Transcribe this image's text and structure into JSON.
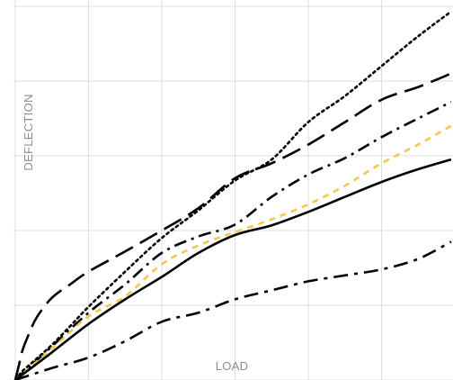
{
  "chart_data": {
    "type": "line",
    "title": "",
    "xlabel": "LOAD",
    "ylabel": "DEFLECTION",
    "xlim": [
      0,
      6
    ],
    "ylim": [
      0,
      5
    ],
    "grid": true,
    "grid_color": "#dcdcdc",
    "series": [
      {
        "style": "dotted",
        "color": "#000000",
        "x": [
          0,
          0.1,
          0.25,
          0.5,
          0.75,
          1,
          1.5,
          2,
          2.5,
          3,
          3.5,
          4,
          4.5,
          5,
          5.5,
          5.95
        ],
        "y": [
          0,
          0.12,
          0.25,
          0.47,
          0.72,
          0.98,
          1.45,
          1.9,
          2.27,
          2.67,
          2.95,
          3.45,
          3.8,
          4.2,
          4.6,
          4.93
        ]
      },
      {
        "style": "long-dash",
        "color": "#000000",
        "x": [
          0,
          0.05,
          0.1,
          0.2,
          0.3,
          0.5,
          0.75,
          1,
          1.5,
          2,
          2.5,
          3,
          3.5,
          4,
          4.5,
          5,
          5.5,
          5.95
        ],
        "y": [
          0,
          0.2,
          0.4,
          0.65,
          0.85,
          1.1,
          1.28,
          1.45,
          1.72,
          2.0,
          2.3,
          2.7,
          2.9,
          3.15,
          3.45,
          3.75,
          3.92,
          4.1
        ]
      },
      {
        "style": "dash-dot",
        "color": "#000000",
        "x": [
          0,
          0.5,
          1,
          1.5,
          2,
          2.5,
          3,
          3.5,
          4,
          4.5,
          5,
          5.5,
          5.95
        ],
        "y": [
          0,
          0.45,
          0.9,
          1.28,
          1.7,
          1.92,
          2.08,
          2.45,
          2.75,
          2.97,
          3.25,
          3.5,
          3.72
        ]
      },
      {
        "style": "dashed",
        "color": "#f2c94c",
        "x": [
          0,
          0.5,
          1,
          1.5,
          2,
          2.5,
          3,
          3.5,
          4,
          4.5,
          5,
          5.5,
          5.95
        ],
        "y": [
          0,
          0.42,
          0.85,
          1.12,
          1.55,
          1.8,
          1.98,
          2.15,
          2.35,
          2.6,
          2.9,
          3.15,
          3.4
        ]
      },
      {
        "style": "solid",
        "color": "#000000",
        "x": [
          0,
          0.5,
          1,
          1.5,
          2,
          2.5,
          3,
          3.5,
          4,
          4.5,
          5,
          5.5,
          5.95
        ],
        "y": [
          0,
          0.37,
          0.75,
          1.08,
          1.38,
          1.7,
          1.94,
          2.07,
          2.25,
          2.45,
          2.65,
          2.82,
          2.95
        ]
      },
      {
        "style": "long-dash-dot",
        "color": "#000000",
        "x": [
          0,
          0.5,
          1,
          1.5,
          2,
          2.5,
          3,
          3.5,
          4,
          4.5,
          5,
          5.5,
          5.95
        ],
        "y": [
          0,
          0.16,
          0.3,
          0.52,
          0.78,
          0.9,
          1.08,
          1.2,
          1.32,
          1.4,
          1.48,
          1.62,
          1.85
        ]
      }
    ]
  }
}
